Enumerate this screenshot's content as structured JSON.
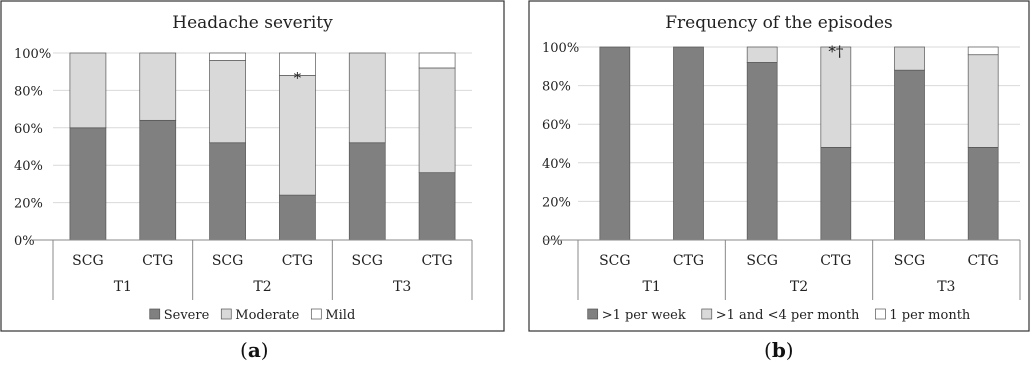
{
  "chart_data": [
    {
      "type": "stacked-bar-100",
      "title": "Headache severity",
      "groups": [
        "T1",
        "T2",
        "T3"
      ],
      "categories": [
        "SCG",
        "CTG",
        "SCG",
        "CTG",
        "SCG",
        "CTG"
      ],
      "yticks": [
        "0%",
        "20%",
        "40%",
        "60%",
        "80%",
        "100%"
      ],
      "ylim": [
        0,
        100
      ],
      "series": [
        {
          "name": "Severe",
          "color": "#808080",
          "values": [
            60,
            64,
            52,
            24,
            52,
            36
          ]
        },
        {
          "name": "Moderate",
          "color": "#d9d9d9",
          "values": [
            40,
            36,
            44,
            64,
            48,
            56
          ]
        },
        {
          "name": "Mild",
          "color": "#ffffff",
          "values": [
            0,
            0,
            4,
            12,
            0,
            8
          ]
        }
      ],
      "annotations": [
        {
          "category_index": 3,
          "text": "*",
          "value": 84
        }
      ],
      "legend_position": "bottom",
      "grid": true,
      "sublabel": "a"
    },
    {
      "type": "stacked-bar-100",
      "title": "Frequency of the episodes",
      "groups": [
        "T1",
        "T2",
        "T3"
      ],
      "categories": [
        "SCG",
        "CTG",
        "SCG",
        "CTG",
        "SCG",
        "CTG"
      ],
      "yticks": [
        "0%",
        "20%",
        "40%",
        "60%",
        "80%",
        "100%"
      ],
      "ylim": [
        0,
        100
      ],
      "series": [
        {
          "name": ">1 per week",
          "color": "#808080",
          "values": [
            100,
            100,
            92,
            48,
            88,
            48
          ]
        },
        {
          "name": ">1 and <4 per month",
          "color": "#d9d9d9",
          "values": [
            0,
            0,
            8,
            52,
            12,
            48
          ]
        },
        {
          "name": "1 per month",
          "color": "#ffffff",
          "values": [
            0,
            0,
            0,
            0,
            0,
            4
          ]
        }
      ],
      "annotations": [
        {
          "category_index": 3,
          "text": "*†",
          "value": 95
        }
      ],
      "legend_position": "bottom",
      "grid": true,
      "sublabel": "b"
    }
  ]
}
